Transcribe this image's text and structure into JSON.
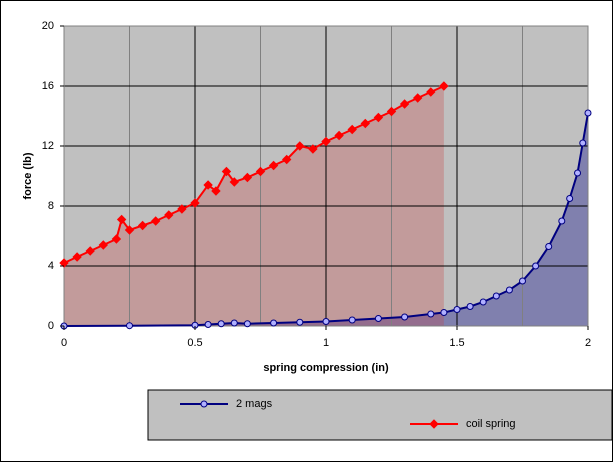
{
  "chart_data": {
    "type": "scatter",
    "x_label": "spring compression (in)",
    "y_label": "force (lb)",
    "xlim": [
      0,
      2
    ],
    "ylim": [
      0,
      20
    ],
    "xticks": [
      0,
      0.5,
      1,
      1.5,
      2
    ],
    "xminor": [
      0.25,
      0.75,
      1.25,
      1.75
    ],
    "yticks": [
      0,
      4,
      8,
      12,
      16,
      20
    ],
    "grid": true,
    "series": [
      {
        "name": "2 mags",
        "color": "#000080",
        "marker": "circle",
        "x": [
          0,
          0.25,
          0.5,
          0.55,
          0.6,
          0.65,
          0.7,
          0.8,
          0.9,
          1.0,
          1.1,
          1.2,
          1.3,
          1.4,
          1.45,
          1.5,
          1.55,
          1.6,
          1.65,
          1.7,
          1.75,
          1.8,
          1.85,
          1.9,
          1.93,
          1.96,
          1.98,
          2.0
        ],
        "values": [
          0,
          0.02,
          0.05,
          0.1,
          0.15,
          0.2,
          0.15,
          0.2,
          0.25,
          0.3,
          0.4,
          0.5,
          0.6,
          0.8,
          0.9,
          1.1,
          1.3,
          1.6,
          2.0,
          2.4,
          3.0,
          4.0,
          5.3,
          7.0,
          8.5,
          10.2,
          12.2,
          14.2
        ]
      },
      {
        "name": "coil spring",
        "color": "#ff0000",
        "marker": "diamond",
        "x": [
          0,
          0.05,
          0.1,
          0.15,
          0.2,
          0.22,
          0.25,
          0.3,
          0.35,
          0.4,
          0.45,
          0.5,
          0.55,
          0.58,
          0.62,
          0.65,
          0.7,
          0.75,
          0.8,
          0.85,
          0.9,
          0.95,
          1.0,
          1.05,
          1.1,
          1.15,
          1.2,
          1.25,
          1.3,
          1.35,
          1.4,
          1.45
        ],
        "values": [
          4.2,
          4.6,
          5.0,
          5.4,
          5.8,
          7.1,
          6.4,
          6.7,
          7.0,
          7.4,
          7.8,
          8.2,
          9.4,
          9.0,
          10.3,
          9.6,
          9.9,
          10.3,
          10.7,
          11.1,
          12.0,
          11.8,
          12.3,
          12.7,
          13.1,
          13.5,
          13.9,
          14.3,
          14.8,
          15.2,
          15.6,
          16.0
        ]
      }
    ]
  }
}
